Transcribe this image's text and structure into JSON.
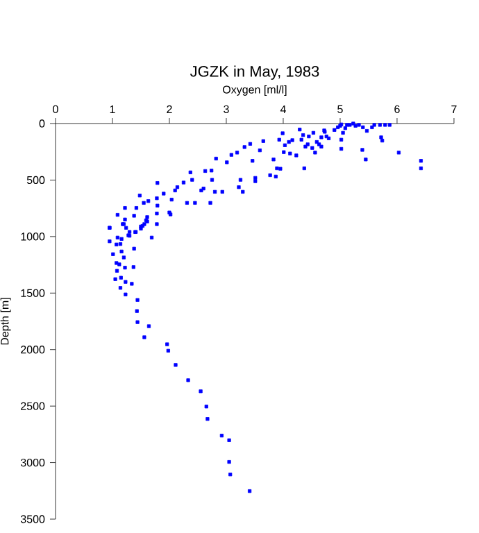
{
  "chart_data": {
    "type": "scatter",
    "title": "JGZK in May, 1983",
    "xlabel": "Oxygen [ml/l]",
    "ylabel": "Depth [m]",
    "xlim": [
      0,
      7
    ],
    "xticks": [
      0,
      1,
      2,
      3,
      4,
      5,
      6,
      7
    ],
    "ylim": [
      3500,
      0
    ],
    "yticks": [
      0,
      500,
      1000,
      1500,
      2000,
      2500,
      3000,
      3500
    ],
    "grid": false,
    "marker": "square",
    "series": [
      {
        "color": "#0000ff",
        "x": [
          0.95,
          1.09,
          1.22,
          1.22,
          1.2,
          1.3,
          1.41,
          1.42,
          1.38,
          1.48,
          1.55,
          1.63,
          1.61,
          1.59,
          1.53,
          1.5,
          1.79,
          1.78,
          1.79,
          1.78,
          1.9,
          2.0,
          2.02,
          2.04,
          2.1,
          2.14,
          2.25,
          2.31,
          2.45,
          2.37,
          2.4,
          2.56,
          2.6,
          2.63,
          2.72,
          2.74,
          2.75,
          2.8,
          2.93,
          2.82,
          3.01,
          3.09,
          3.19,
          3.22,
          3.29,
          3.25,
          3.32,
          3.42,
          3.46,
          3.51,
          3.51,
          3.59,
          3.65,
          3.77,
          3.83,
          3.87,
          3.89,
          3.95,
          3.93,
          3.99,
          4.03,
          4.01,
          4.1,
          4.12,
          4.16,
          4.23,
          4.29,
          4.32,
          4.35,
          4.37,
          4.39,
          4.45,
          4.43,
          4.51,
          4.53,
          4.56,
          4.59,
          4.63,
          4.67,
          4.73,
          4.67,
          4.76,
          4.8,
          4.72,
          4.9,
          4.96,
          5.0,
          5.02,
          5.05,
          5.02,
          5.02,
          5.09,
          5.12,
          5.17,
          5.23,
          5.27,
          5.33,
          5.4,
          5.47,
          5.56,
          5.6,
          5.7,
          5.72,
          5.74,
          5.79,
          5.87,
          5.39,
          5.45,
          6.03,
          6.42,
          6.42,
          0.95,
          1.18,
          1.24,
          1.28,
          1.09,
          0.95,
          1.16,
          1.3,
          1.4,
          1.07,
          1.14,
          1.38,
          1.01,
          1.16,
          1.2,
          1.07,
          1.12,
          1.22,
          1.37,
          1.08,
          1.05,
          1.15,
          1.23,
          1.34,
          1.14,
          1.23,
          1.44,
          1.43,
          1.44,
          1.64,
          1.56,
          1.96,
          1.98,
          2.11,
          1.56,
          1.61,
          1.5,
          1.69,
          1.78,
          2.33,
          2.55,
          2.65,
          2.67,
          2.92,
          3.05,
          3.05,
          3.07,
          3.41
        ],
        "values": [
          922,
          808,
          747,
          849,
          890,
          959,
          959,
          747,
          816,
          637,
          702,
          686,
          828,
          857,
          906,
          930,
          526,
          661,
          726,
          796,
          620,
          787,
          804,
          673,
          592,
          563,
          522,
          702,
          702,
          432,
          498,
          592,
          575,
          420,
          702,
          416,
          498,
          604,
          604,
          310,
          343,
          277,
          257,
          563,
          604,
          498,
          208,
          180,
          330,
          481,
          510,
          237,
          155,
          457,
          318,
          469,
          396,
          400,
          143,
          86,
          192,
          253,
          163,
          265,
          147,
          282,
          53,
          143,
          102,
          396,
          204,
          114,
          184,
          216,
          82,
          257,
          163,
          184,
          122,
          73,
          204,
          114,
          131,
          61,
          57,
          33,
          20,
          8,
          82,
          143,
          224,
          41,
          12,
          12,
          0,
          20,
          12,
          33,
          65,
          33,
          12,
          12,
          122,
          151,
          12,
          12,
          233,
          318,
          257,
          330,
          396,
          923,
          890,
          923,
          989,
          1009,
          1042,
          1021,
          993,
          960,
          1070,
          1066,
          1107,
          1156,
          1132,
          1185,
          1234,
          1246,
          1275,
          1270,
          1303,
          1377,
          1364,
          1401,
          1418,
          1454,
          1512,
          1561,
          1659,
          1757,
          1793,
          1891,
          1953,
          2010,
          2136,
          890,
          866,
          911,
          1009,
          890,
          2271,
          2369,
          2504,
          2614,
          2761,
          2802,
          2994,
          3105,
          3252
        ]
      }
    ]
  }
}
